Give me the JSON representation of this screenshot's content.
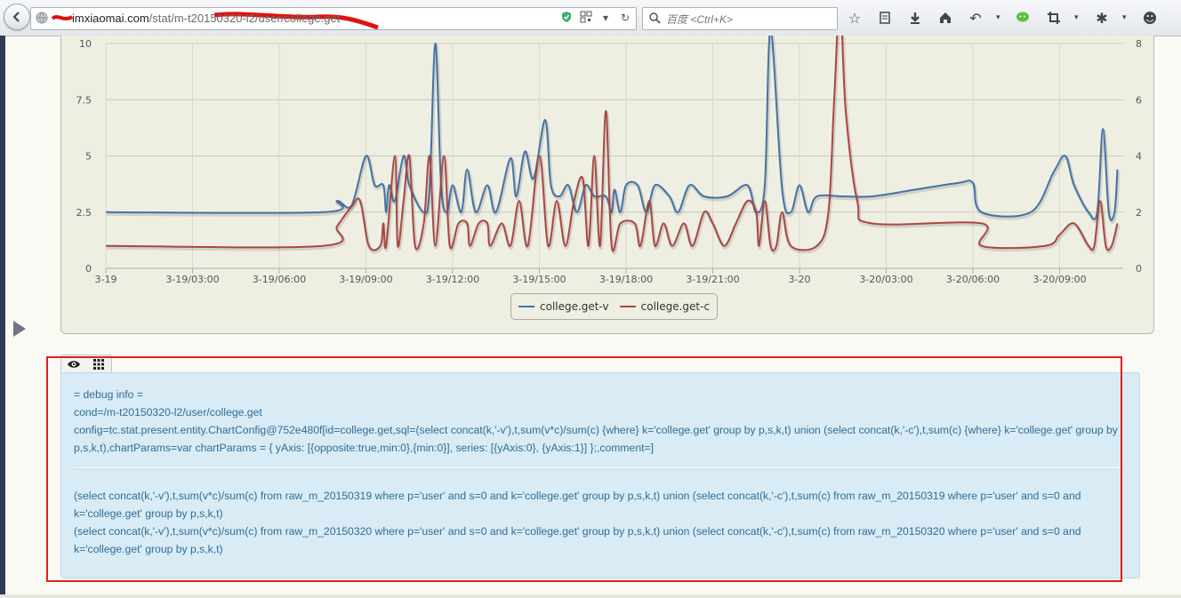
{
  "browser": {
    "url_host": "imxiaomai.com",
    "url_path": "/stat/m-t20150320-l2/user/college.get",
    "search_placeholder": "百度 <Ctrl+K>"
  },
  "chart_data": {
    "type": "line",
    "x_ticks": [
      "3-19",
      "3-19/03:00",
      "3-19/06:00",
      "3-19/09:00",
      "3-19/12:00",
      "3-19/15:00",
      "3-19/18:00",
      "3-19/21:00",
      "3-20",
      "3-20/03:00",
      "3-20/06:00",
      "3-20/09:00"
    ],
    "y_left": {
      "ticks": [
        "0",
        "2.5",
        "5",
        "7.5",
        "10"
      ],
      "range": [
        0,
        10
      ]
    },
    "y_right": {
      "ticks": [
        "0",
        "2",
        "4",
        "6",
        "8"
      ],
      "range": [
        0,
        8
      ]
    },
    "grid": true,
    "legend_position": "bottom-center",
    "series": [
      {
        "name": "college.get-v",
        "axis": "left",
        "color": "#4572a7",
        "points": [
          [
            0,
            2.5
          ],
          [
            7.5,
            2.5
          ],
          [
            8,
            3
          ],
          [
            8.5,
            2.8
          ],
          [
            9,
            5
          ],
          [
            9.3,
            3.7
          ],
          [
            9.6,
            3.7
          ],
          [
            9.7,
            2.5
          ],
          [
            9.8,
            3.7
          ],
          [
            10,
            3
          ],
          [
            10.3,
            5
          ],
          [
            10.5,
            3.7
          ],
          [
            11,
            2.5
          ],
          [
            11.2,
            3.5
          ],
          [
            11.4,
            10
          ],
          [
            11.6,
            3.7
          ],
          [
            11.8,
            2.5
          ],
          [
            12,
            3.7
          ],
          [
            12.3,
            2.5
          ],
          [
            12.5,
            4.4
          ],
          [
            12.8,
            2.5
          ],
          [
            13.2,
            3.7
          ],
          [
            13.5,
            2.5
          ],
          [
            14,
            4.9
          ],
          [
            14.2,
            3.2
          ],
          [
            14.5,
            5.2
          ],
          [
            14.8,
            4
          ],
          [
            15.2,
            6.6
          ],
          [
            15.4,
            3.7
          ],
          [
            15.7,
            3.2
          ],
          [
            16,
            3.7
          ],
          [
            16.3,
            2.5
          ],
          [
            16.6,
            3.7
          ],
          [
            16.9,
            3.2
          ],
          [
            17.3,
            3.2
          ],
          [
            17.5,
            2.5
          ],
          [
            17.6,
            3.5
          ],
          [
            17.8,
            2.5
          ],
          [
            18,
            3.7
          ],
          [
            18.4,
            3.7
          ],
          [
            18.7,
            2.5
          ],
          [
            19,
            3.7
          ],
          [
            19.5,
            3.2
          ],
          [
            19.8,
            2.5
          ],
          [
            20.2,
            3.7
          ],
          [
            20.7,
            3.2
          ],
          [
            21.5,
            3.2
          ],
          [
            22.2,
            3.7
          ],
          [
            22.5,
            2.5
          ],
          [
            22.8,
            3.7
          ],
          [
            23,
            10.6
          ],
          [
            23.4,
            3.5
          ],
          [
            23.7,
            2.5
          ],
          [
            24,
            3.7
          ],
          [
            24.3,
            2.5
          ],
          [
            24.6,
            3.2
          ],
          [
            25.5,
            3.2
          ],
          [
            26.5,
            3.2
          ],
          [
            28,
            3.5
          ],
          [
            29.5,
            3.8
          ],
          [
            30,
            3.8
          ],
          [
            30.3,
            2.5
          ],
          [
            32,
            2.5
          ],
          [
            32.8,
            4.3
          ],
          [
            33.2,
            5
          ],
          [
            33.5,
            3.7
          ],
          [
            34,
            2.5
          ],
          [
            34.3,
            2.5
          ],
          [
            34.5,
            6.2
          ],
          [
            34.7,
            2.5
          ],
          [
            34.9,
            2.5
          ],
          [
            35,
            4.4
          ]
        ]
      },
      {
        "name": "college.get-c",
        "axis": "right",
        "color": "#aa4643",
        "points": [
          [
            0,
            0.8
          ],
          [
            7.5,
            0.8
          ],
          [
            8,
            1.5
          ],
          [
            8.5,
            2.2
          ],
          [
            8.8,
            2.4
          ],
          [
            9.1,
            0.8
          ],
          [
            9.5,
            0.8
          ],
          [
            9.6,
            1.6
          ],
          [
            9.7,
            0.8
          ],
          [
            10,
            4
          ],
          [
            10.1,
            0.8
          ],
          [
            10.3,
            2.4
          ],
          [
            10.5,
            4
          ],
          [
            10.7,
            0.8
          ],
          [
            11,
            1.6
          ],
          [
            11.2,
            4
          ],
          [
            11.4,
            0.8
          ],
          [
            11.7,
            4
          ],
          [
            11.9,
            0.8
          ],
          [
            12.2,
            1.6
          ],
          [
            12.5,
            1.6
          ],
          [
            12.6,
            0.8
          ],
          [
            12.9,
            1.6
          ],
          [
            13.2,
            1.6
          ],
          [
            13.3,
            0.8
          ],
          [
            13.7,
            1.6
          ],
          [
            14,
            0.8
          ],
          [
            14.3,
            2.4
          ],
          [
            14.6,
            0.8
          ],
          [
            15,
            4
          ],
          [
            15.3,
            0.8
          ],
          [
            15.6,
            2.4
          ],
          [
            15.9,
            0.8
          ],
          [
            16.2,
            2.4
          ],
          [
            16.5,
            3.2
          ],
          [
            16.7,
            0.8
          ],
          [
            16.9,
            4
          ],
          [
            17.1,
            0.8
          ],
          [
            17.3,
            5.6
          ],
          [
            17.5,
            0.8
          ],
          [
            17.8,
            1.6
          ],
          [
            18.3,
            1.6
          ],
          [
            18.5,
            0.8
          ],
          [
            18.8,
            2.4
          ],
          [
            19,
            0.8
          ],
          [
            19.3,
            1.6
          ],
          [
            19.6,
            0.8
          ],
          [
            20,
            1.6
          ],
          [
            20.3,
            0.8
          ],
          [
            20.7,
            2
          ],
          [
            21,
            1.6
          ],
          [
            21.4,
            0.8
          ],
          [
            21.8,
            1.6
          ],
          [
            22.2,
            2.4
          ],
          [
            22.5,
            2
          ],
          [
            22.6,
            0.8
          ],
          [
            22.8,
            2.4
          ],
          [
            23,
            0.8
          ],
          [
            23.2,
            0.8
          ],
          [
            23.4,
            2
          ],
          [
            23.7,
            0.8
          ],
          [
            24.6,
            0.8
          ],
          [
            25,
            2
          ],
          [
            25.2,
            6
          ],
          [
            25.4,
            9.5
          ],
          [
            25.6,
            5.6
          ],
          [
            26,
            2.4
          ],
          [
            26.5,
            1.6
          ],
          [
            30.3,
            1.6
          ],
          [
            30.3,
            0.8
          ],
          [
            32.5,
            0.8
          ],
          [
            33,
            1.2
          ],
          [
            33.5,
            1.6
          ],
          [
            34,
            0.8
          ],
          [
            34.2,
            0.8
          ],
          [
            34.4,
            2.4
          ],
          [
            34.6,
            0.8
          ],
          [
            34.8,
            0.8
          ],
          [
            35,
            1.6
          ]
        ]
      }
    ]
  },
  "debug": {
    "lines_top": [
      "= debug info =",
      "cond=/m-t20150320-l2/user/college.get",
      "config=tc.stat.present.entity.ChartConfig@752e480f[id=college.get,sql=(select concat(k,'-v'),t,sum(v*c)/sum(c) {where} k='college.get' group by p,s,k,t) union (select concat(k,'-c'),t,sum(c) {where} k='college.get' group by p,s,k,t),chartParams=var chartParams = { yAxis: [{opposite:true,min:0},{min:0}], series: [{yAxis:0}, {yAxis:1}] };,comment=]"
    ],
    "lines_bottom": [
      "(select concat(k,'-v'),t,sum(v*c)/sum(c) from raw_m_20150319 where p='user' and s=0 and k='college.get' group by p,s,k,t) union (select concat(k,'-c'),t,sum(c) from raw_m_20150319 where p='user' and s=0 and k='college.get' group by p,s,k,t)",
      "(select concat(k,'-v'),t,sum(v*c)/sum(c) from raw_m_20150320 where p='user' and s=0 and k='college.get' group by p,s,k,t) union (select concat(k,'-c'),t,sum(c) from raw_m_20150320 where p='user' and s=0 and k='college.get' group by p,s,k,t)"
    ]
  }
}
